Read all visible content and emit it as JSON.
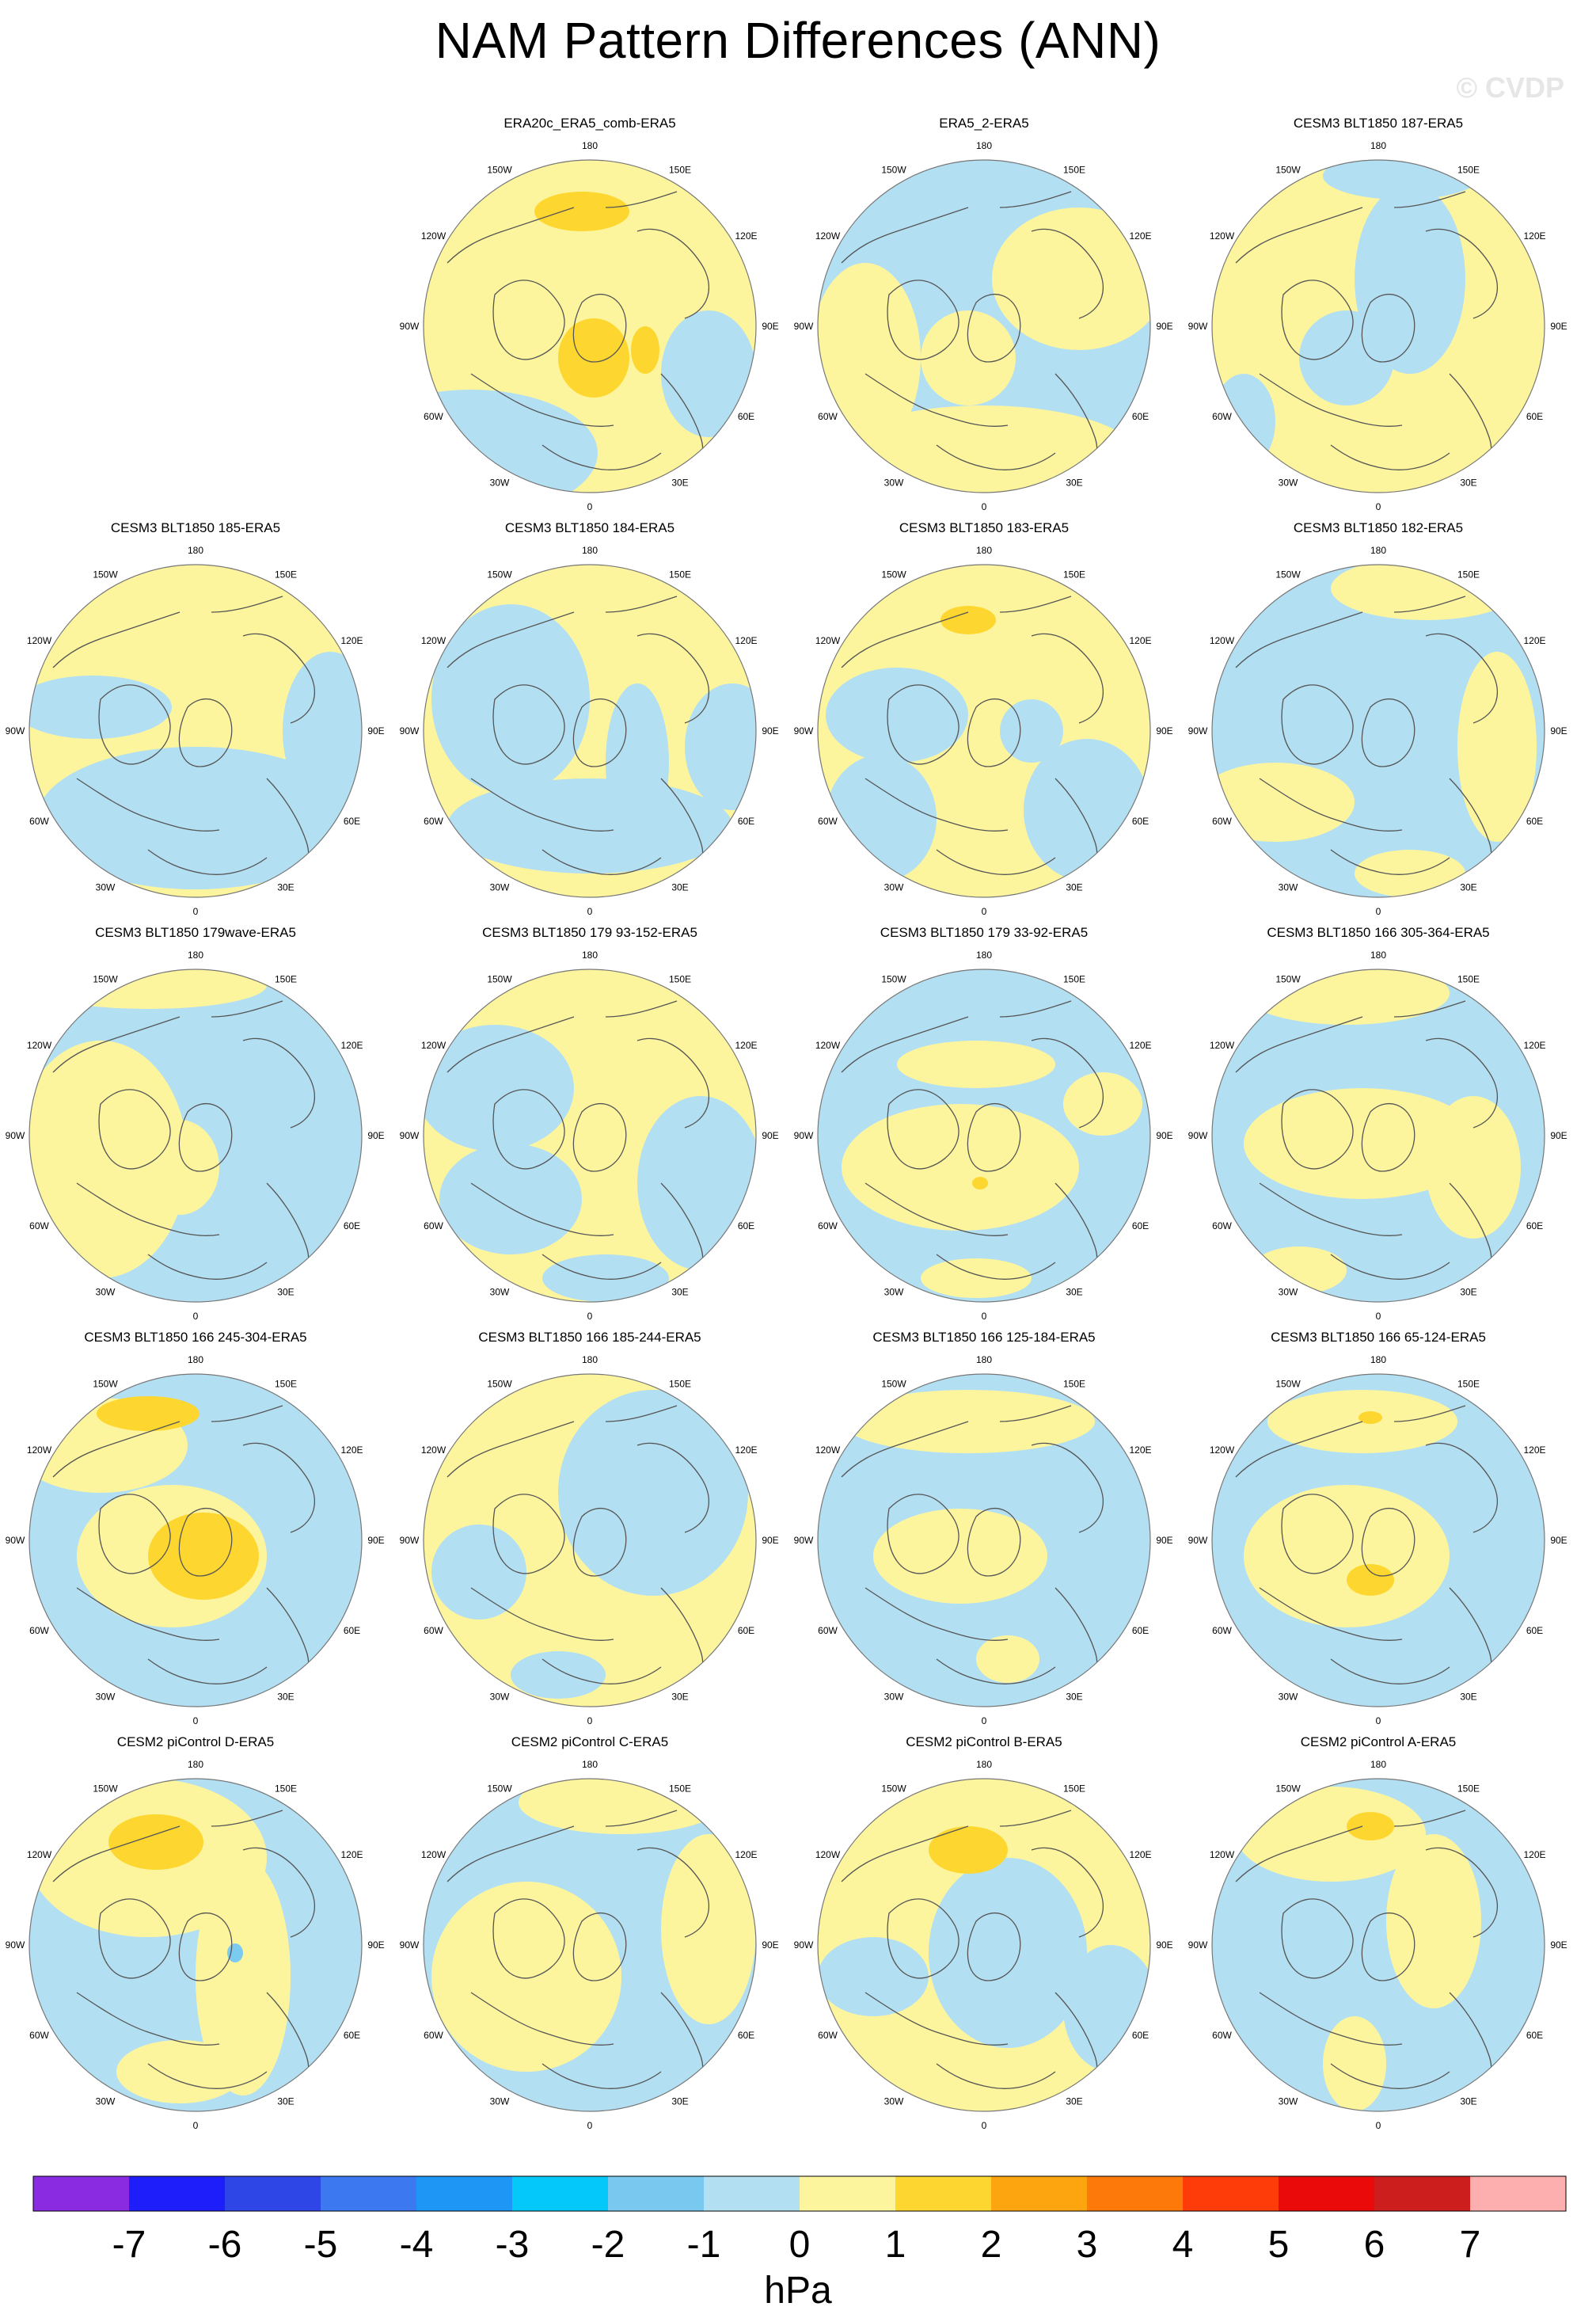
{
  "title": "NAM Pattern Differences (ANN)",
  "watermark": "© CVDP",
  "colors": {
    "land_outline": "#555555",
    "circle_outline": "#777777",
    "neg1_0": "#b3dff2",
    "pos0_1": "#fdf59e",
    "pos1_2": "#fdd630",
    "neg2_1": "#7bcaf0"
  },
  "longitude_labels": [
    "180",
    "150E",
    "120E",
    "90E",
    "60E",
    "30E",
    "0",
    "30W",
    "60W",
    "90W",
    "120W",
    "150W"
  ],
  "panels": [
    {
      "title": "ERA20c_ERA5_comb-ERA5",
      "pattern": "ERA20c"
    },
    {
      "title": "ERA5_2-ERA5",
      "pattern": "ERA5_2"
    },
    {
      "title": "CESM3 BLT1850 187-ERA5",
      "pattern": "187"
    },
    {
      "title": "CESM3 BLT1850 185-ERA5",
      "pattern": "185"
    },
    {
      "title": "CESM3 BLT1850 184-ERA5",
      "pattern": "184"
    },
    {
      "title": "CESM3 BLT1850 183-ERA5",
      "pattern": "183"
    },
    {
      "title": "CESM3 BLT1850 182-ERA5",
      "pattern": "182"
    },
    {
      "title": "CESM3 BLT1850 179wave-ERA5",
      "pattern": "179wave"
    },
    {
      "title": "CESM3 BLT1850 179 93-152-ERA5",
      "pattern": "179a"
    },
    {
      "title": "CESM3 BLT1850 179 33-92-ERA5",
      "pattern": "179b"
    },
    {
      "title": "CESM3 BLT1850 166 305-364-ERA5",
      "pattern": "166a"
    },
    {
      "title": "CESM3 BLT1850 166 245-304-ERA5",
      "pattern": "166b"
    },
    {
      "title": "CESM3 BLT1850 166 185-244-ERA5",
      "pattern": "166c"
    },
    {
      "title": "CESM3 BLT1850 166 125-184-ERA5",
      "pattern": "166d"
    },
    {
      "title": "CESM3 BLT1850 166 65-124-ERA5",
      "pattern": "166e"
    },
    {
      "title": "CESM2 piControl D-ERA5",
      "pattern": "D"
    },
    {
      "title": "CESM2 piControl C-ERA5",
      "pattern": "C"
    },
    {
      "title": "CESM2 piControl B-ERA5",
      "pattern": "B"
    },
    {
      "title": "CESM2 piControl A-ERA5",
      "pattern": "A"
    }
  ],
  "colorbar": {
    "colors": [
      "#8a2be2",
      "#1e1efa",
      "#2f46e6",
      "#3c78f0",
      "#1e96f5",
      "#04c8fa",
      "#78c8f0",
      "#b3dff2",
      "#fdf59e",
      "#fdd630",
      "#fda50f",
      "#fd7a0a",
      "#fe3c0a",
      "#eb0a0a",
      "#cd1e1e",
      "#fdafaf"
    ],
    "labels": [
      "-7",
      "-6",
      "-5",
      "-4",
      "-3",
      "-2",
      "-1",
      "0",
      "1",
      "2",
      "3",
      "4",
      "5",
      "6",
      "7"
    ],
    "units": "hPa"
  }
}
